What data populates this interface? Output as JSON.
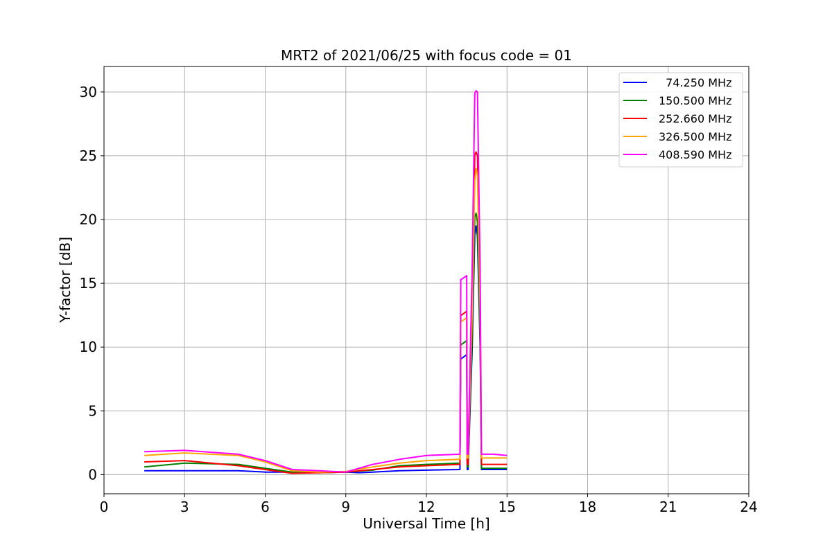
{
  "chart_data": {
    "type": "line",
    "title": "MRT2 of 2021/06/25 with focus code = 01",
    "xlabel": "Universal Time [h]",
    "ylabel": "Y-factor [dB]",
    "xlim": [
      0,
      24
    ],
    "ylim": [
      -1.5,
      32
    ],
    "xticks": [
      0,
      3,
      6,
      9,
      12,
      15,
      18,
      21,
      24
    ],
    "yticks": [
      0,
      5,
      10,
      15,
      20,
      25,
      30
    ],
    "grid": true,
    "legend_position": "top-right",
    "series": [
      {
        "name": "  74.250 MHz",
        "color": "#0000ff",
        "x": [
          1.5,
          3,
          5,
          6,
          7,
          8,
          9,
          9.5,
          10,
          11,
          12,
          13.25,
          13.28,
          13.3,
          13.5,
          13.52,
          13.55,
          13.7,
          13.8,
          13.85,
          13.9,
          14.0,
          14.05,
          14.5,
          15
        ],
        "y": [
          0.3,
          0.3,
          0.3,
          0.2,
          0.2,
          0.15,
          0.2,
          0.15,
          0.2,
          0.3,
          0.35,
          0.4,
          9.1,
          9.1,
          9.4,
          0.4,
          0.4,
          9.6,
          18.8,
          19.5,
          18.7,
          10.0,
          0.4,
          0.4,
          0.4
        ]
      },
      {
        "name": "150.500 MHz",
        "color": "#008000",
        "x": [
          1.5,
          3,
          5,
          6,
          7,
          8,
          9,
          10,
          11,
          12,
          13.25,
          13.28,
          13.3,
          13.5,
          13.52,
          13.55,
          13.7,
          13.8,
          13.85,
          13.9,
          14.0,
          14.05,
          14.5,
          15
        ],
        "y": [
          0.6,
          0.9,
          0.8,
          0.5,
          0.2,
          0.15,
          0.2,
          0.35,
          0.7,
          0.8,
          0.9,
          10.2,
          10.2,
          10.5,
          0.6,
          0.6,
          10.7,
          20.2,
          20.5,
          19.8,
          10.9,
          0.5,
          0.5,
          0.5
        ]
      },
      {
        "name": "252.660 MHz",
        "color": "#ff0000",
        "x": [
          1.5,
          3,
          5,
          6,
          7,
          8,
          9,
          10,
          11,
          12,
          13.25,
          13.28,
          13.3,
          13.5,
          13.52,
          13.55,
          13.7,
          13.8,
          13.85,
          13.9,
          14.0,
          14.05,
          14.5,
          15
        ],
        "y": [
          1.0,
          1.1,
          0.7,
          0.4,
          0.1,
          0.15,
          0.2,
          0.4,
          0.6,
          0.7,
          0.8,
          12.5,
          12.5,
          12.8,
          0.8,
          0.8,
          13.0,
          25.1,
          25.3,
          25.0,
          13.3,
          0.8,
          0.8,
          0.8
        ]
      },
      {
        "name": "326.500 MHz",
        "color": "#ffa500",
        "x": [
          1.5,
          3,
          5,
          6,
          7,
          8,
          9,
          10,
          11,
          12,
          13.25,
          13.28,
          13.3,
          13.5,
          13.52,
          13.55,
          13.7,
          13.8,
          13.85,
          13.9,
          14.0,
          14.05,
          14.5,
          15
        ],
        "y": [
          1.5,
          1.7,
          1.5,
          1.0,
          0.3,
          0.2,
          0.25,
          0.6,
          0.9,
          1.1,
          1.2,
          12.0,
          12.0,
          12.3,
          1.3,
          1.3,
          12.5,
          23.0,
          24.0,
          23.5,
          12.8,
          1.3,
          1.3,
          1.3
        ]
      },
      {
        "name": "408.590 MHz",
        "color": "#ff00ff",
        "x": [
          1.5,
          3,
          5,
          6,
          7,
          8,
          9,
          10,
          11,
          12,
          13.25,
          13.28,
          13.3,
          13.5,
          13.52,
          13.55,
          13.7,
          13.8,
          13.85,
          13.9,
          14.0,
          14.05,
          14.5,
          15
        ],
        "y": [
          1.8,
          1.9,
          1.6,
          1.1,
          0.4,
          0.3,
          0.2,
          0.8,
          1.2,
          1.5,
          1.6,
          15.3,
          15.3,
          15.6,
          1.6,
          1.6,
          15.8,
          29.9,
          30.1,
          30.0,
          16.2,
          1.6,
          1.6,
          1.5
        ]
      }
    ]
  }
}
